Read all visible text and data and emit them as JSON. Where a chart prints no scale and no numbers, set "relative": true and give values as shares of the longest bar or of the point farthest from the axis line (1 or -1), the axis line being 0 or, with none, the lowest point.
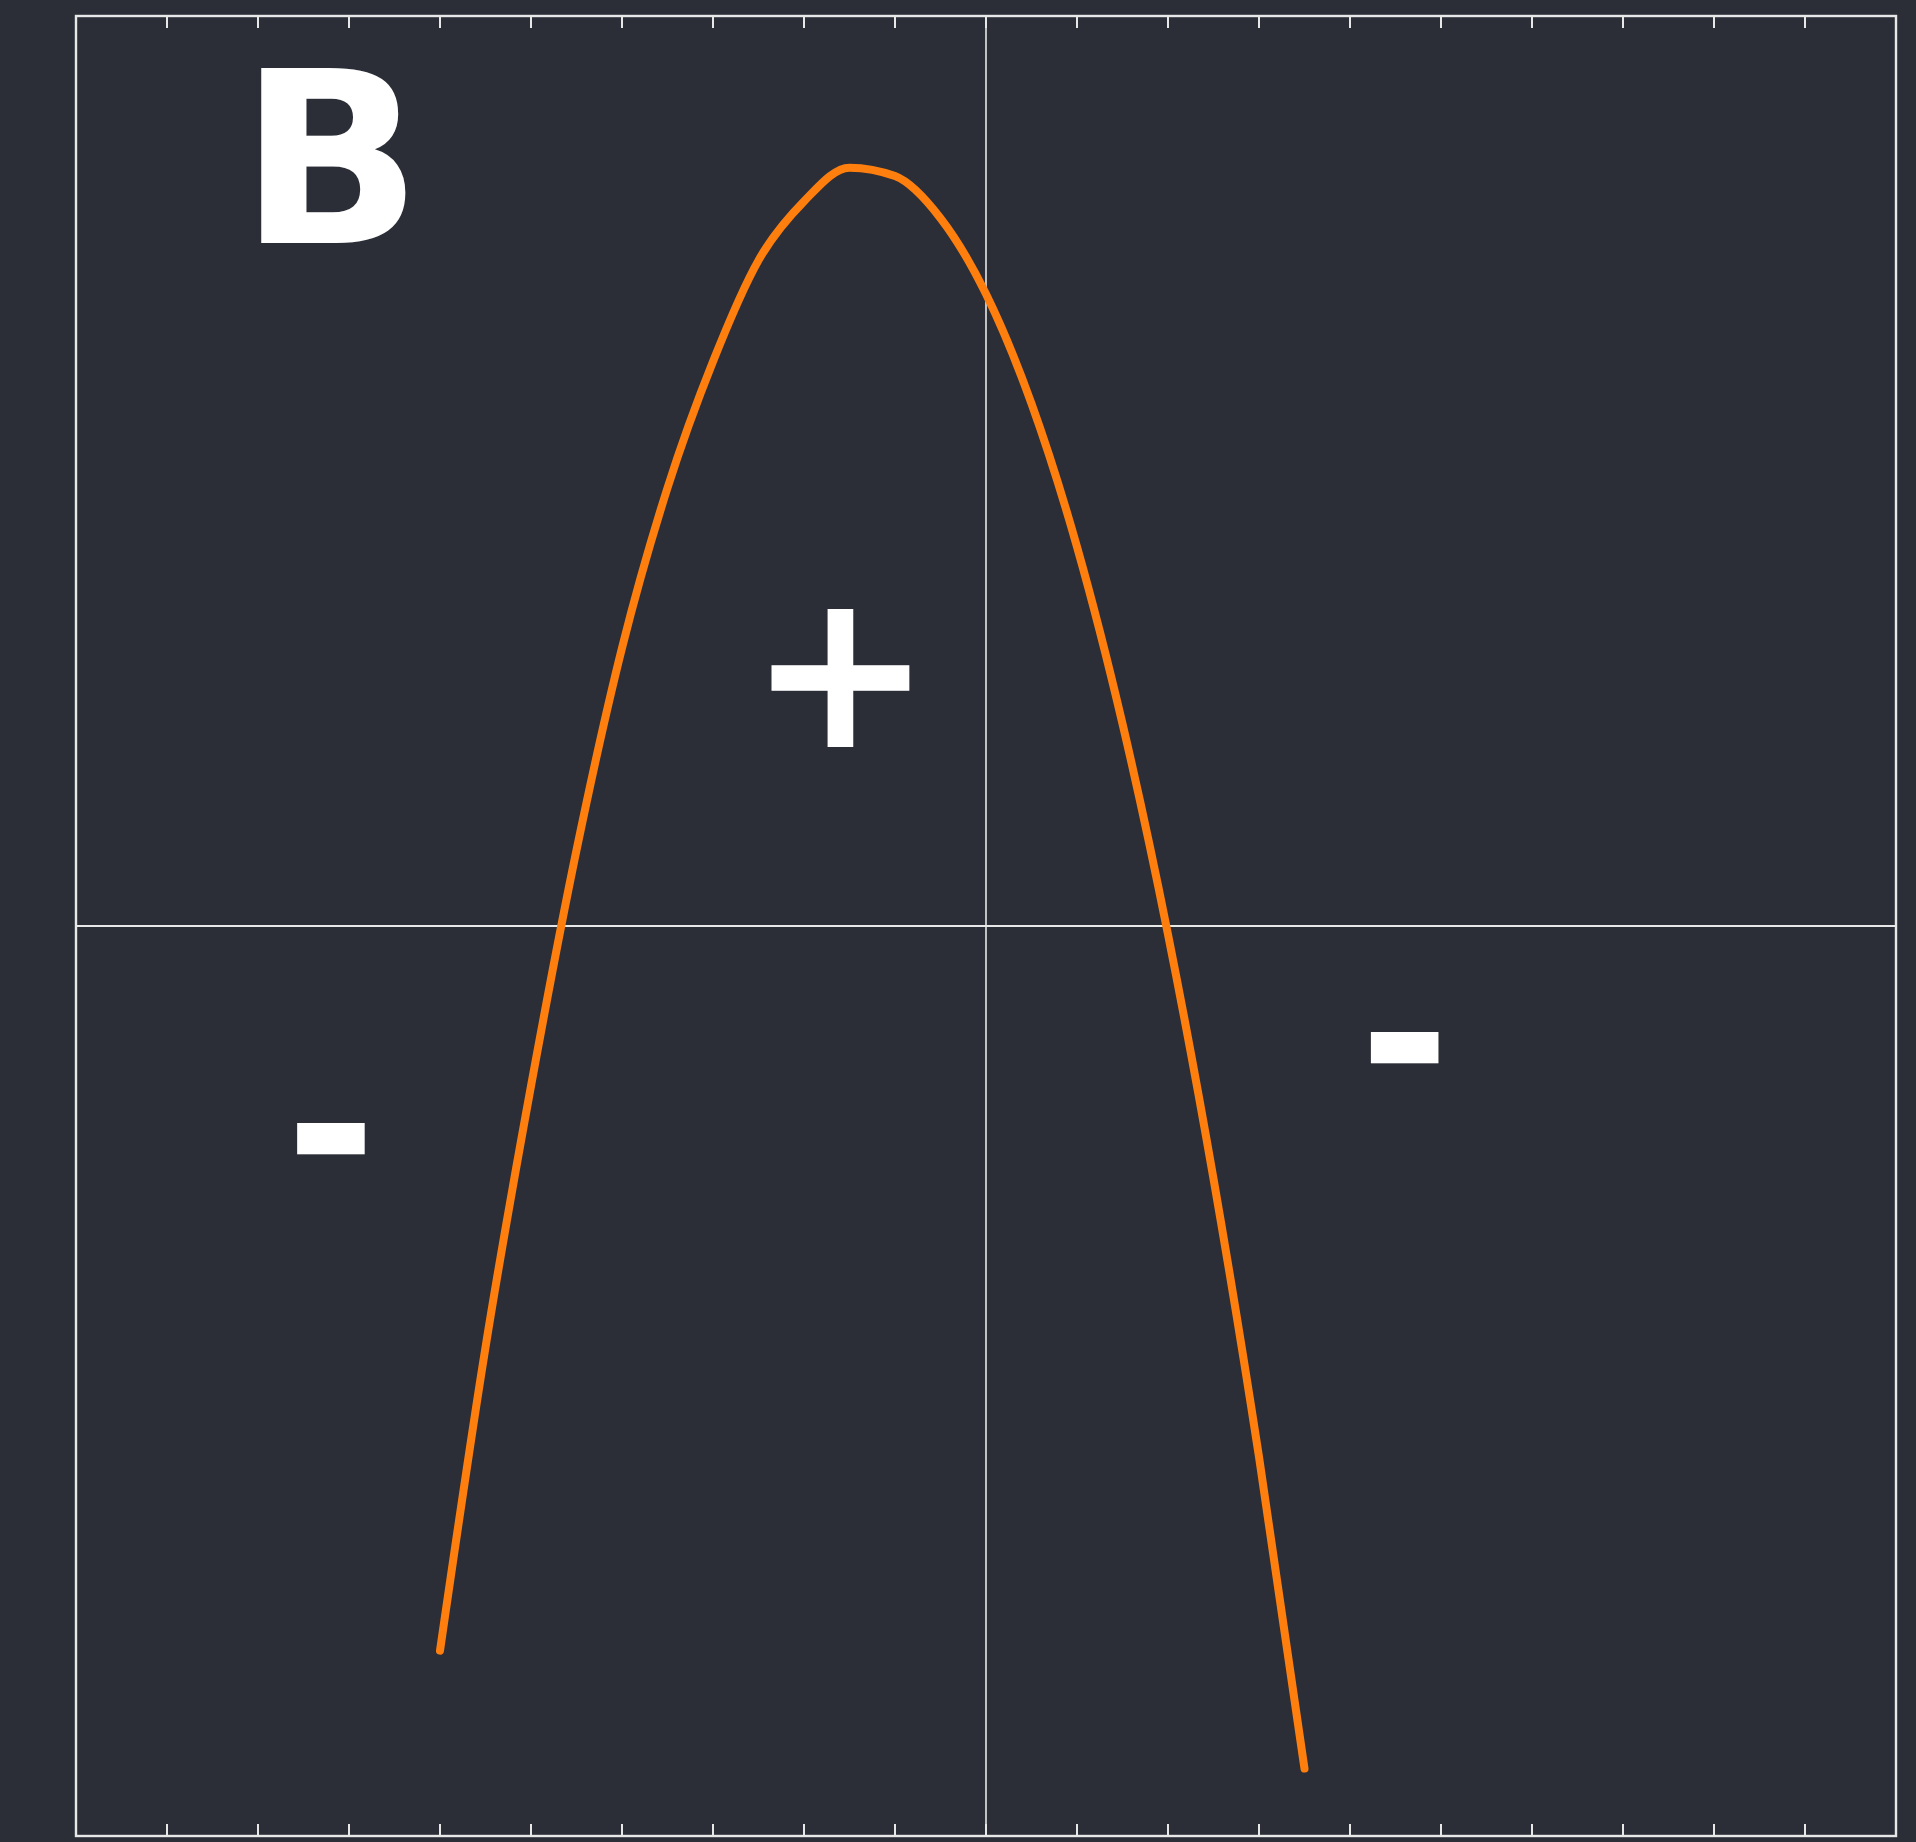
{
  "chart_data": {
    "type": "line",
    "relative": true,
    "categories": [
      null,
      null,
      null,
      null,
      null,
      null,
      null,
      null,
      null,
      null,
      null,
      null,
      null,
      null,
      null,
      null,
      null,
      null,
      null,
      null,
      null,
      null,
      null,
      null,
      null,
      null,
      null,
      null,
      null,
      null,
      null,
      null,
      null,
      null,
      null,
      null,
      null,
      null,
      null,
      null,
      null
    ],
    "series": [
      {
        "color": "#ff7f0e",
        "values": [
          null,
          null,
          null,
          null,
          null,
          null,
          null,
          null,
          -0.86,
          -0.5,
          -0.19,
          0.09,
          0.33,
          0.52,
          0.67,
          0.79,
          0.86,
          0.9,
          0.89,
          0.84,
          0.75,
          0.62,
          0.45,
          0.24,
          -0.01,
          -0.3,
          -0.63,
          -1,
          null,
          null,
          null,
          null,
          null,
          null,
          null,
          null,
          null,
          null,
          null,
          null,
          null
        ]
      }
    ],
    "annotations": [
      "B",
      "+",
      "-",
      "-"
    ],
    "legend": false,
    "grid": false,
    "marker": "none",
    "line_style": "solid"
  }
}
